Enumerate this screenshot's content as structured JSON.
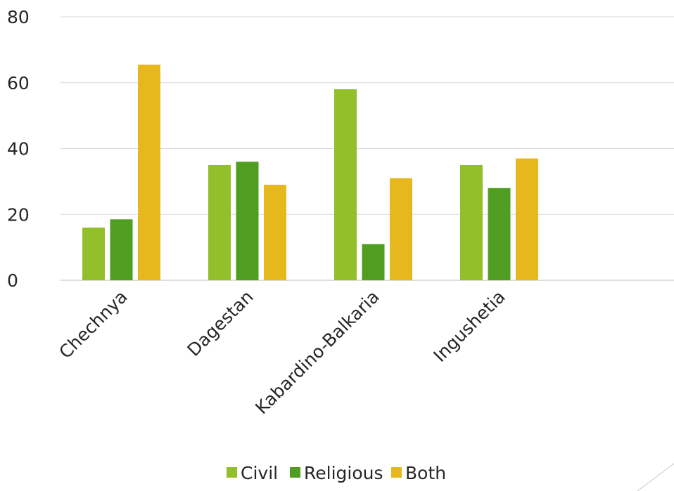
{
  "chart_data": {
    "type": "bar",
    "categories": [
      "Chechnya",
      "Dagestan",
      "Kabardino-Balkaria",
      "Ingushetia"
    ],
    "series": [
      {
        "name": "Civil",
        "values": [
          16,
          35,
          58,
          35
        ],
        "color": "#92c02a"
      },
      {
        "name": "Religious",
        "values": [
          18.5,
          36,
          11,
          28
        ],
        "color": "#4f9e22"
      },
      {
        "name": "Both",
        "values": [
          65.5,
          29,
          31,
          37
        ],
        "color": "#e6b81e"
      }
    ],
    "yticks": [
      "0",
      "20",
      "40",
      "60",
      "80"
    ],
    "ylim": [
      0,
      80
    ],
    "grid": true,
    "legend": "bottom"
  }
}
